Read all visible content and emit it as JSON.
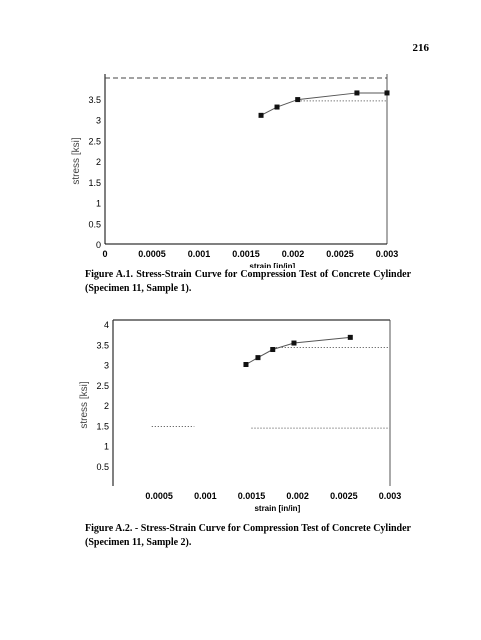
{
  "page": {
    "number": "216"
  },
  "figures": [
    {
      "label": "Figure A.1.",
      "caption": "Stress-Strain Curve for Compression Test of Concrete Cylinder (Specimen 11, Sample 1)."
    },
    {
      "label": "Figure A.2.",
      "caption": "- Stress-Strain Curve for Compression Test of Concrete Cylinder (Specimen 11, Sample 2)."
    }
  ],
  "chart_data": [
    {
      "type": "line",
      "title": "",
      "xlabel": "strain [in/in]",
      "ylabel": "stress [ksi]",
      "xlim": [
        0,
        0.003
      ],
      "ylim": [
        0,
        4
      ],
      "x_ticks": [
        "0",
        "0.0005",
        "0.001",
        "0.0015",
        "0.002",
        "0.0025",
        "0.003"
      ],
      "y_ticks": [
        "0",
        "0.5",
        "1",
        "1.5",
        "2",
        "2.5",
        "3",
        "3.5"
      ],
      "grid": false,
      "series": [
        {
          "points": [
            [
              0.00166,
              3.1
            ],
            [
              0.00183,
              3.3
            ],
            [
              0.00205,
              3.48
            ],
            [
              0.00268,
              3.64
            ],
            [
              0.003,
              3.64
            ]
          ]
        }
      ],
      "reference_lines": [
        {
          "style": "dashed",
          "x": [
            0,
            0.003
          ],
          "y": [
            4,
            4
          ]
        },
        {
          "style": "dotted",
          "x": [
            0.00205,
            0.003
          ],
          "y": [
            3.45,
            3.45
          ]
        }
      ]
    },
    {
      "type": "line",
      "title": "",
      "xlabel": "strain [in/in]",
      "ylabel": "stress [ksi]",
      "xlim": [
        0,
        0.003
      ],
      "ylim": [
        0,
        4
      ],
      "x_ticks": [
        "0.0005",
        "0.001",
        "0.0015",
        "0.002",
        "0.0025",
        "0.003"
      ],
      "y_ticks": [
        "0.5",
        "1",
        "1.5",
        "2",
        "2.5",
        "3",
        "3.5",
        "4"
      ],
      "grid": false,
      "series": [
        {
          "points": [
            [
              0.00144,
              3.0
            ],
            [
              0.00157,
              3.17
            ],
            [
              0.00173,
              3.37
            ],
            [
              0.00196,
              3.53
            ],
            [
              0.00257,
              3.67
            ]
          ]
        }
      ],
      "reference_lines": [
        {
          "style": "dotted",
          "x": [
            0.00173,
            0.003
          ],
          "y": [
            3.42,
            3.42
          ]
        },
        {
          "style": "dotted",
          "x": [
            0.00042,
            0.00088
          ],
          "y": [
            1.47,
            1.47
          ]
        },
        {
          "style": "dotted",
          "x": [
            0.0015,
            0.003
          ],
          "y": [
            1.43,
            1.43
          ]
        }
      ]
    }
  ]
}
